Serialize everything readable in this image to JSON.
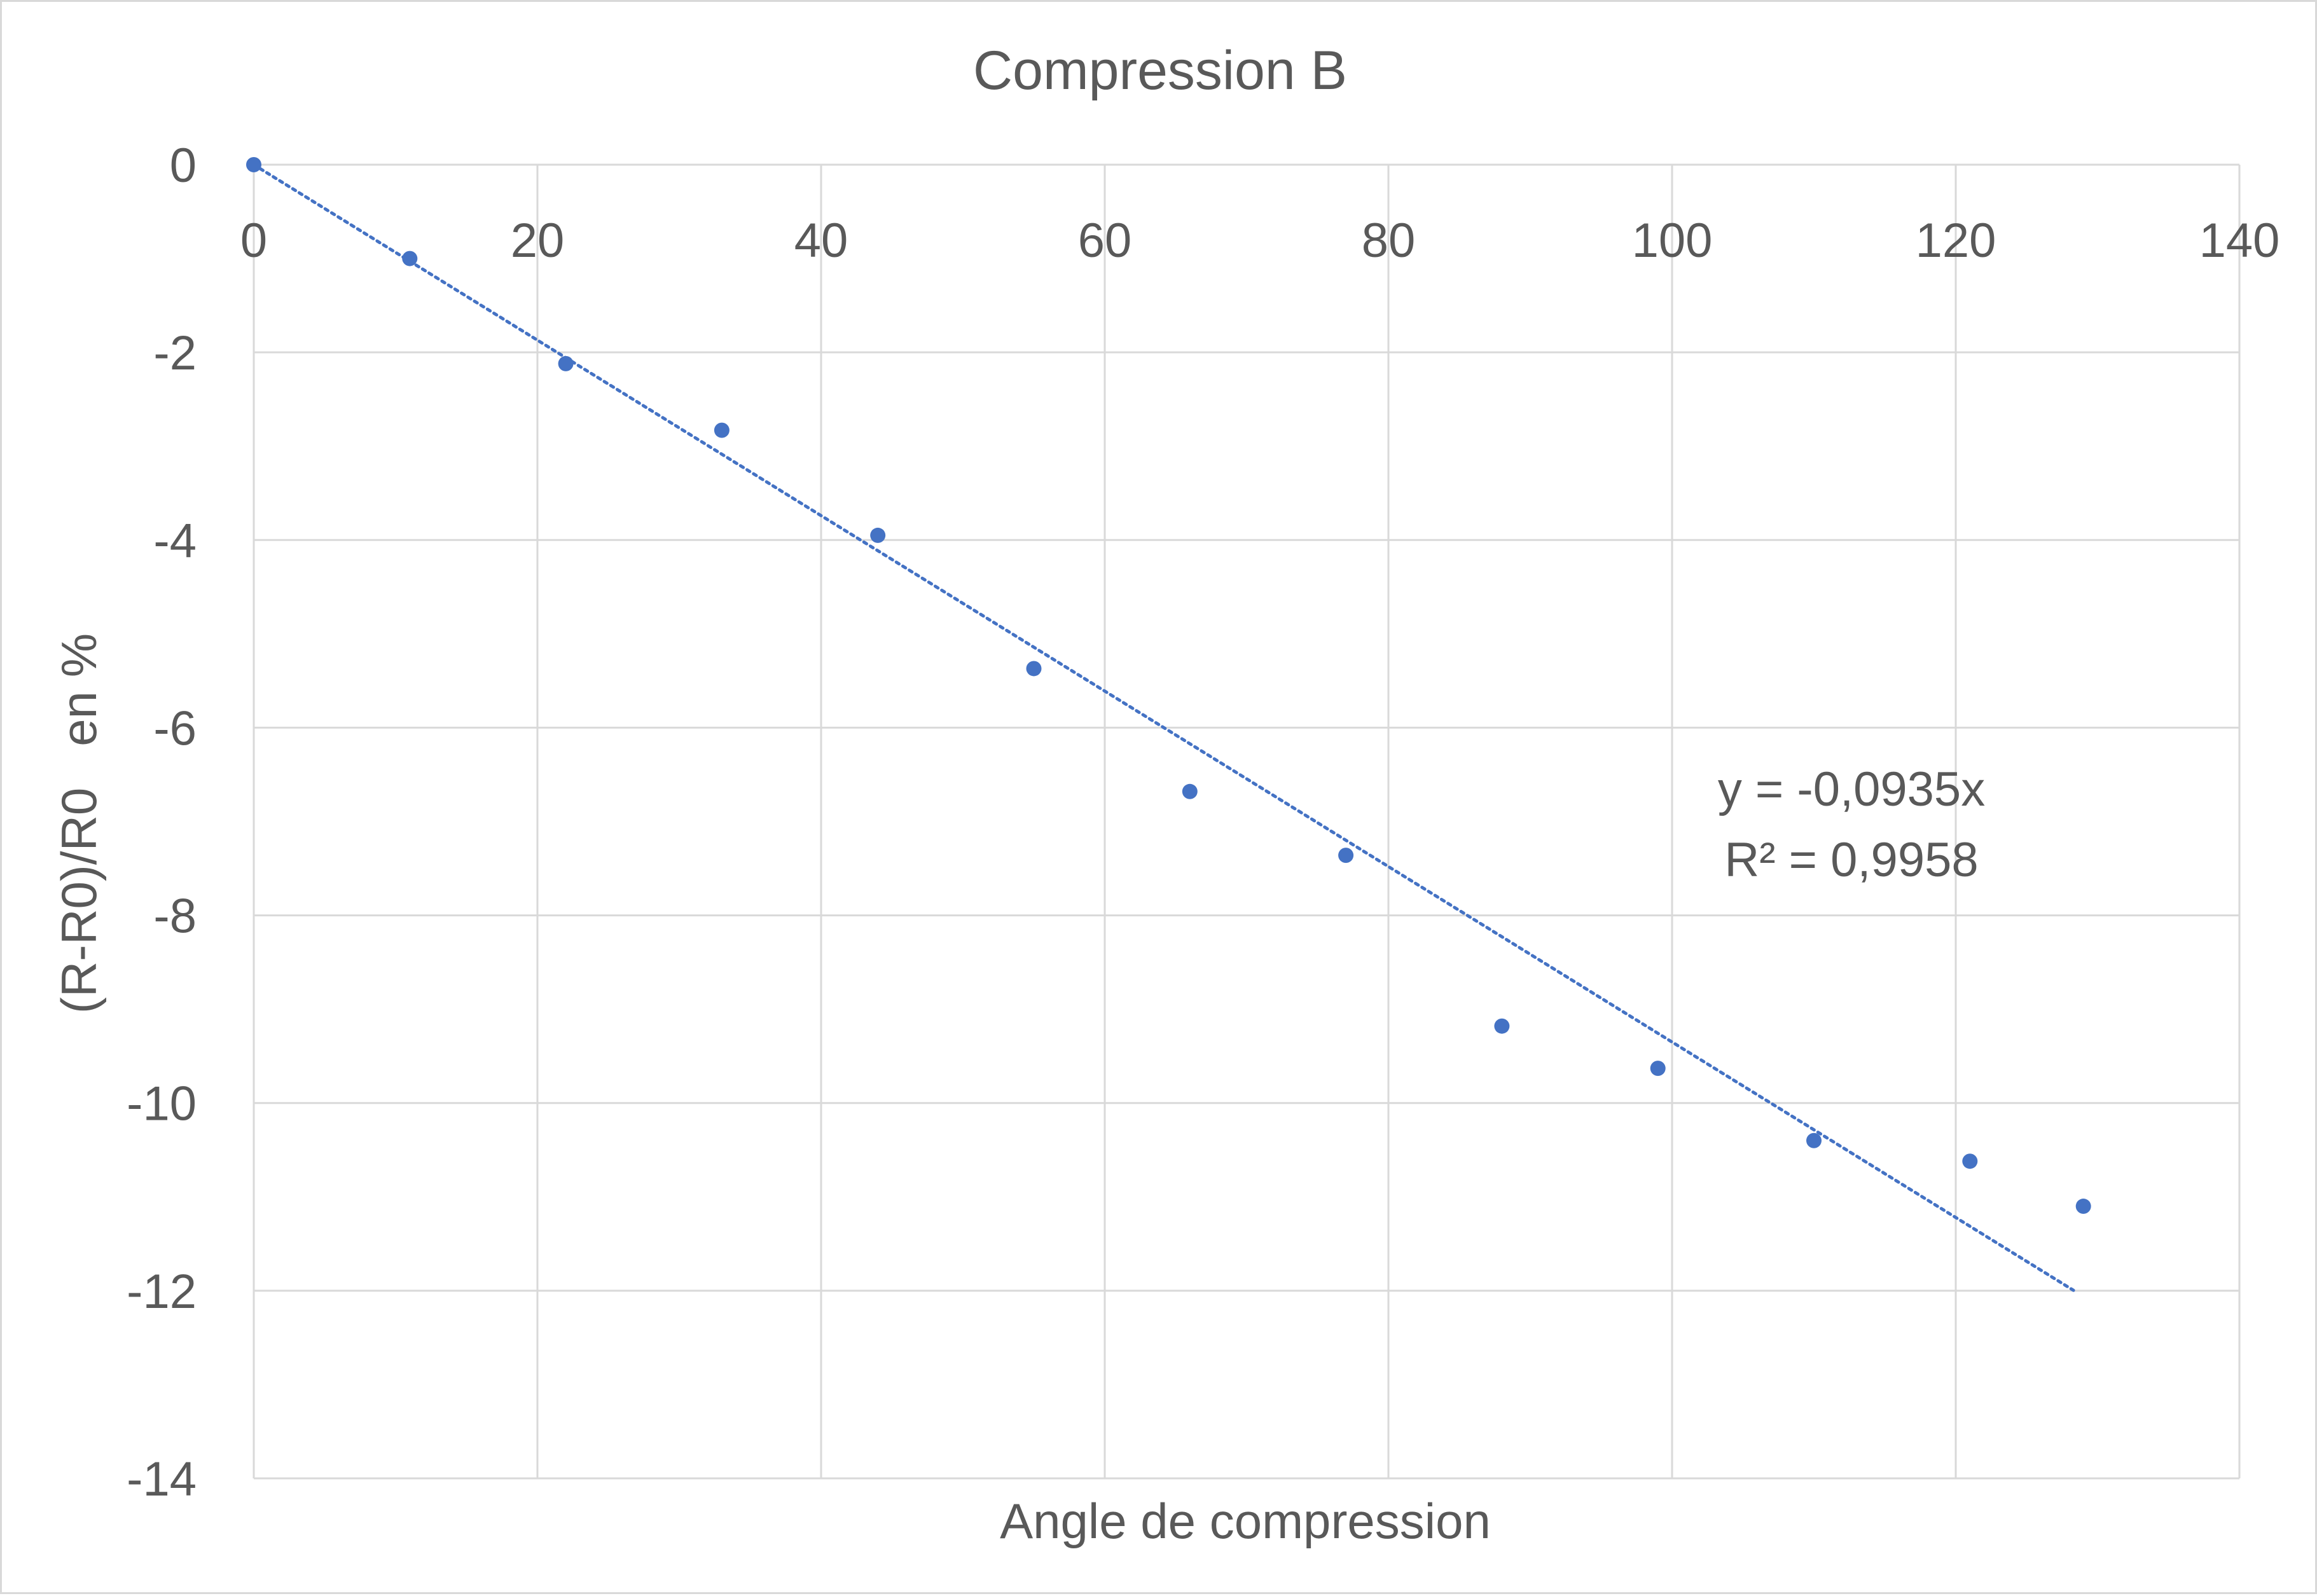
{
  "chart_data": {
    "type": "scatter",
    "title": "Compression B",
    "xlabel": "Angle de compression",
    "ylabel": "(R-R0)/R0   en %",
    "xlim": [
      0,
      140
    ],
    "ylim": [
      -14,
      0
    ],
    "x_ticks": [
      0,
      20,
      40,
      60,
      80,
      100,
      120,
      140
    ],
    "x_tick_labels": [
      "0",
      "20",
      "40",
      "60",
      "80",
      "100",
      "120",
      "140"
    ],
    "y_ticks": [
      0,
      -2,
      -4,
      -6,
      -8,
      -10,
      -12,
      -14
    ],
    "y_tick_labels": [
      "0",
      "-2",
      "-4",
      "-6",
      "-8",
      "-10",
      "-12",
      "-14"
    ],
    "x_axis_position": "top",
    "grid": true,
    "legend": "none",
    "series": [
      {
        "x": [
          0,
          11,
          22,
          33,
          44,
          55,
          66,
          77,
          88,
          99,
          110,
          121,
          129
        ],
        "y": [
          0,
          -1.0,
          -2.12,
          -2.83,
          -3.95,
          -5.37,
          -6.68,
          -7.36,
          -9.18,
          -9.63,
          -10.4,
          -10.62,
          -11.1
        ],
        "color": "#4472c4"
      }
    ],
    "trendline": {
      "type": "linear",
      "slope": -0.0935,
      "intercept": 0,
      "x_range": [
        0,
        128.3
      ],
      "style": "dotted",
      "color": "#4472c4",
      "equation_label": "y = -0,0935x",
      "r2_label": "R² = 0,9958"
    }
  }
}
